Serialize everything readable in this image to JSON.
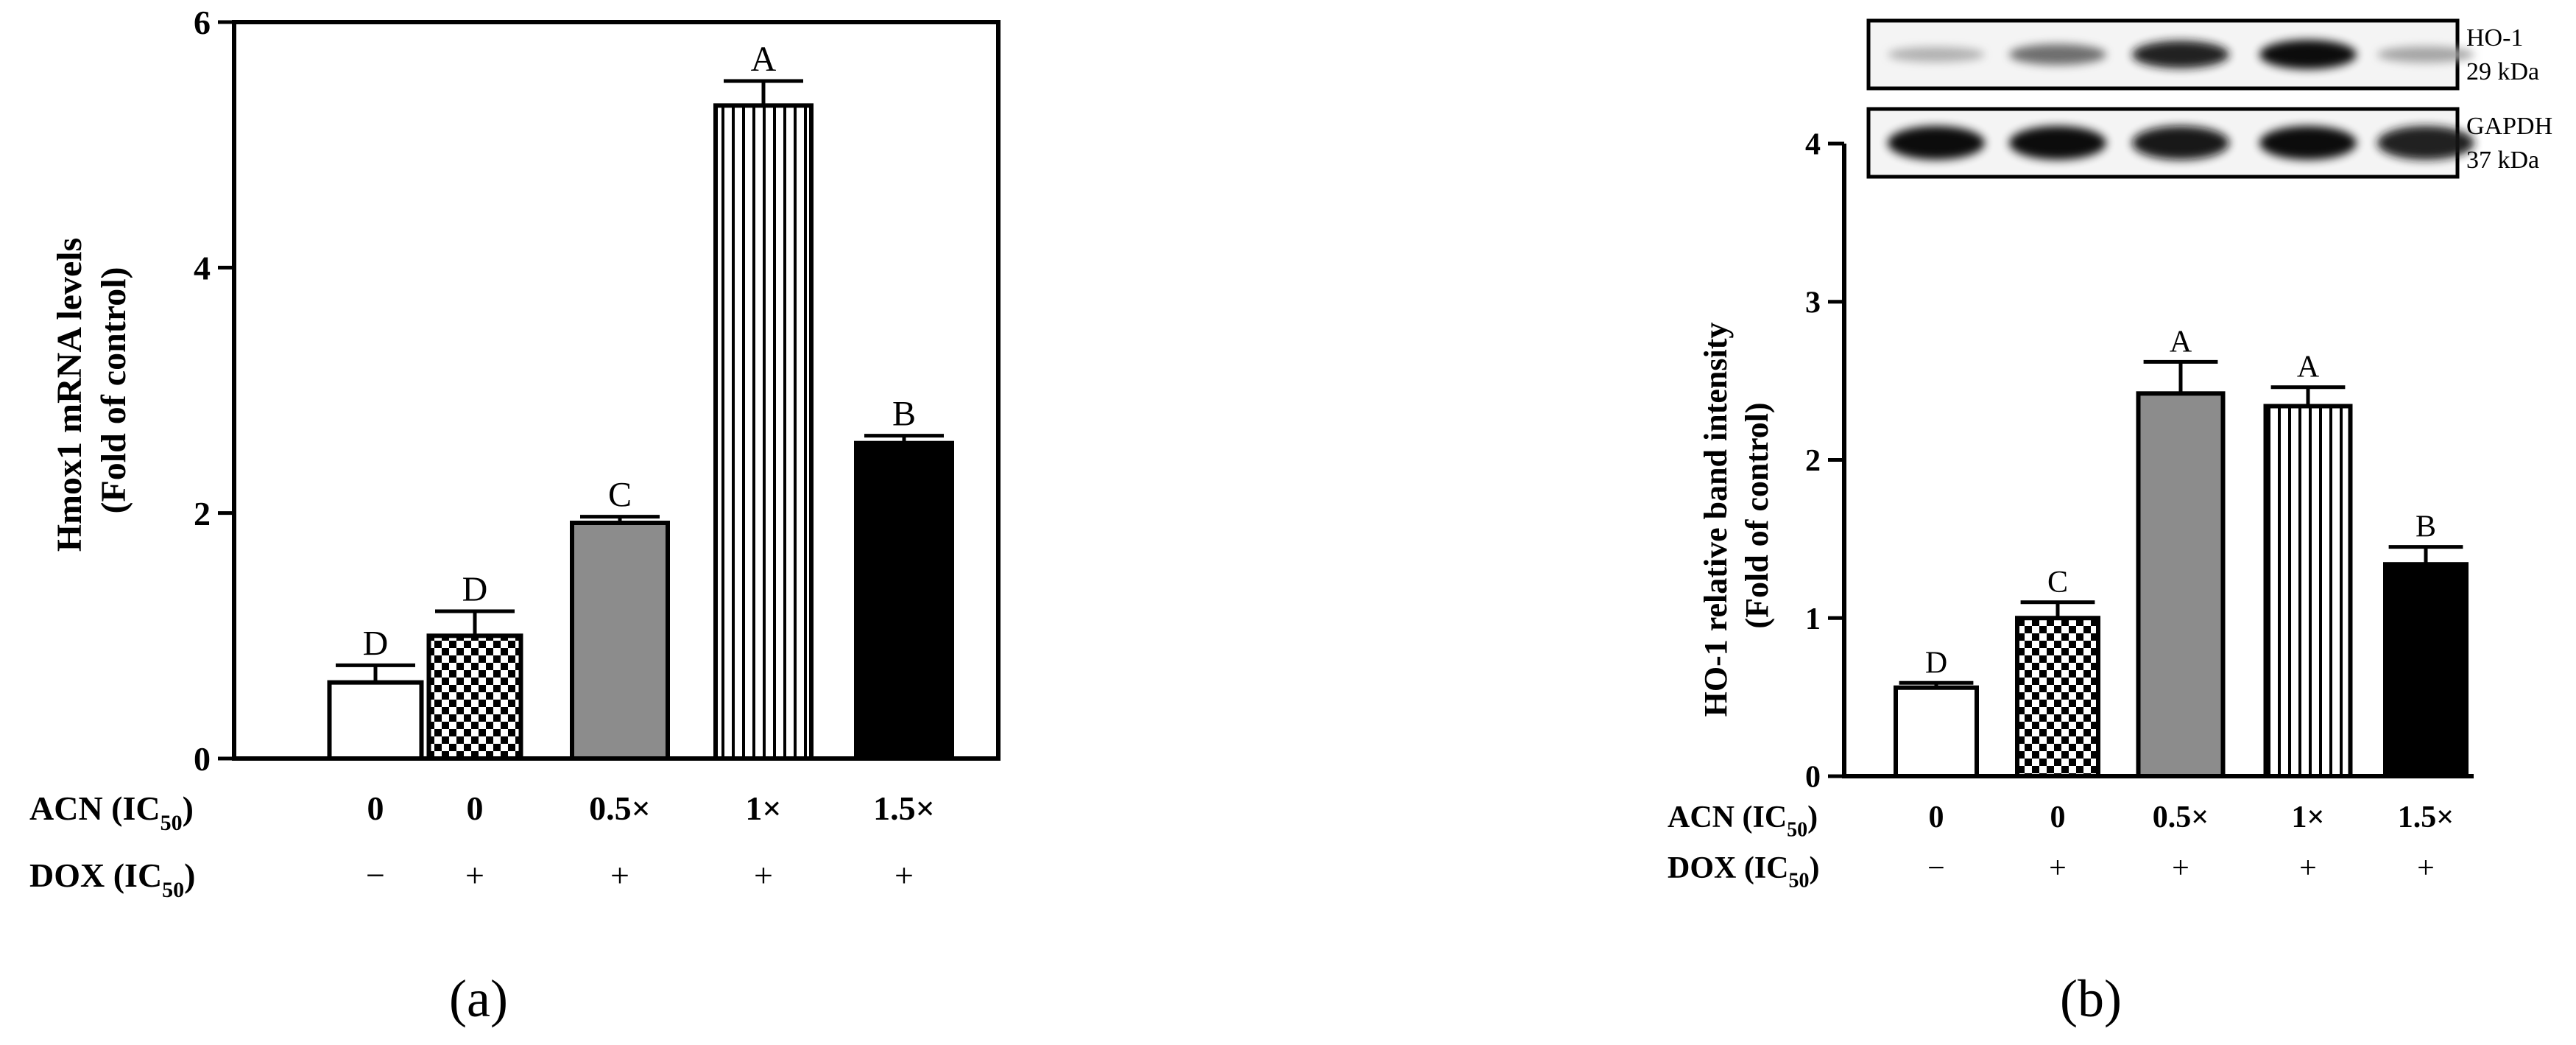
{
  "chart_data": [
    {
      "type": "bar",
      "panel_label": "(a)",
      "title": "",
      "ylabel_line1": "Hmox1 mRNA levels",
      "ylabel_line2": "(Fold of control)",
      "xlabel": "",
      "ylim": [
        0,
        6
      ],
      "yticks": [
        0,
        2,
        4,
        6
      ],
      "grid": false,
      "categories": [
        "0",
        "0",
        "0.5×",
        "1×",
        "1.5×"
      ],
      "values": [
        0.62,
        1.0,
        1.92,
        5.32,
        2.57
      ],
      "errors": [
        0.14,
        0.2,
        0.05,
        0.2,
        0.06
      ],
      "significance": [
        "D",
        "D",
        "C",
        "A",
        "B"
      ],
      "fills": [
        "white",
        "checker",
        "gray",
        "vstripes",
        "black"
      ],
      "rows": [
        {
          "label_main": "ACN (IC",
          "label_sub": "50",
          "label_end": ")",
          "values": [
            "0",
            "0",
            "0.5×",
            "1×",
            "1.5×"
          ]
        },
        {
          "label_main": "DOX (IC",
          "label_sub": "50",
          "label_end": ")",
          "values": [
            "−",
            "+",
            "+",
            "+",
            "+"
          ]
        }
      ]
    },
    {
      "type": "bar",
      "panel_label": "(b)",
      "title": "",
      "ylabel_line1": "HO-1 relative band intensity",
      "ylabel_line2": "(Fold of control)",
      "xlabel": "",
      "ylim": [
        0,
        4
      ],
      "yticks": [
        0,
        1,
        2,
        3,
        4
      ],
      "grid": false,
      "categories": [
        "0",
        "0",
        "0.5×",
        "1×",
        "1.5×"
      ],
      "values": [
        0.56,
        1.0,
        2.42,
        2.34,
        1.34
      ],
      "errors": [
        0.03,
        0.1,
        0.2,
        0.12,
        0.11
      ],
      "significance": [
        "D",
        "C",
        "A",
        "A",
        "B"
      ],
      "fills": [
        "white",
        "checker",
        "gray",
        "vstripes",
        "black"
      ],
      "rows": [
        {
          "label_main": "ACN (IC",
          "label_sub": "50",
          "label_end": ")",
          "values": [
            "0",
            "0",
            "0.5×",
            "1×",
            "1.5×"
          ]
        },
        {
          "label_main": "DOX (IC",
          "label_sub": "50",
          "label_end": ")",
          "values": [
            "−",
            "+",
            "+",
            "+",
            "+"
          ]
        }
      ],
      "blots": [
        {
          "name_line1": "HO-1",
          "name_line2": "29 kDa",
          "band_intensity": [
            0.25,
            0.55,
            0.9,
            1.0,
            0.3
          ]
        },
        {
          "name_line1": "GAPDH",
          "name_line2": "37 kDa",
          "band_intensity": [
            1.0,
            1.0,
            0.95,
            1.0,
            0.92
          ]
        }
      ]
    }
  ]
}
